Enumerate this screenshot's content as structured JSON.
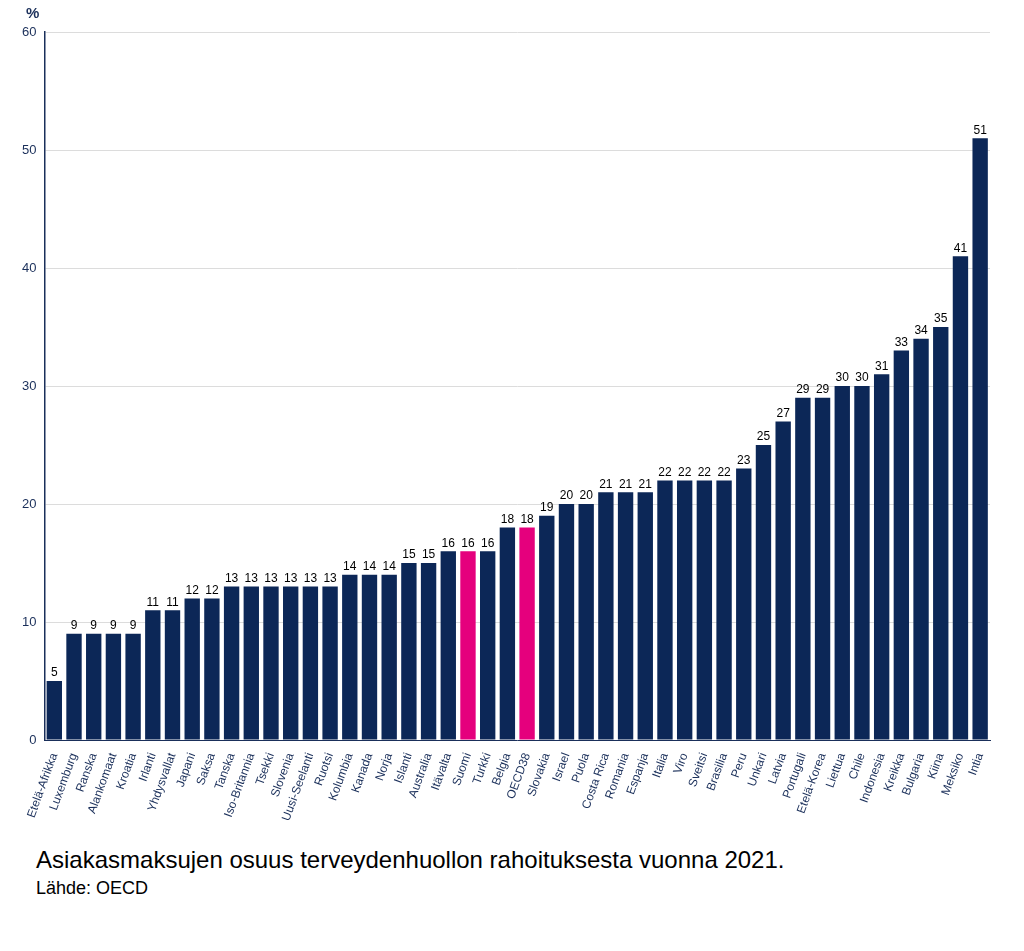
{
  "chart_data": {
    "type": "bar",
    "title": "Asiakasmaksujen osuus terveydenhuollon rahoituksesta vuonna 2021.",
    "subtitle": "Lähde: OECD",
    "ylabel": "%",
    "categories": [
      "Etelä-Afrikka",
      "Luxemburg",
      "Ranska",
      "Alankomaat",
      "Kroatia",
      "Irlanti",
      "Yhdysvallat",
      "Japani",
      "Saksa",
      "Tanska",
      "Iso-Britannia",
      "Tsekki",
      "Slovenia",
      "Uusi-Seelanti",
      "Ruotsi",
      "Kolumbia",
      "Kanada",
      "Norja",
      "Islanti",
      "Australia",
      "Itävalta",
      "Suomi",
      "Turkki",
      "Belgia",
      "OECD38",
      "Slovakia",
      "Israel",
      "Puola",
      "Costa Rica",
      "Romania",
      "Espanja",
      "Italia",
      "Viro",
      "Sveitsi",
      "Brasilia",
      "Peru",
      "Unkari",
      "Latvia",
      "Portugali",
      "Etelä-Korea",
      "Liettua",
      "Chile",
      "Indonesia",
      "Kreikka",
      "Bulgaria",
      "Kiina",
      "Meksiko",
      "Intia"
    ],
    "values": [
      5,
      9,
      9,
      9,
      9,
      11,
      11,
      12,
      12,
      13,
      13,
      13,
      13,
      13,
      13,
      14,
      14,
      14,
      15,
      15,
      16,
      16,
      16,
      18,
      18,
      19,
      20,
      20,
      21,
      21,
      21,
      22,
      22,
      22,
      22,
      23,
      25,
      27,
      29,
      29,
      30,
      30,
      31,
      33,
      34,
      35,
      41,
      51
    ],
    "colors": [
      "#0c2757",
      "#0c2757",
      "#0c2757",
      "#0c2757",
      "#0c2757",
      "#0c2757",
      "#0c2757",
      "#0c2757",
      "#0c2757",
      "#0c2757",
      "#0c2757",
      "#0c2757",
      "#0c2757",
      "#0c2757",
      "#0c2757",
      "#0c2757",
      "#0c2757",
      "#0c2757",
      "#0c2757",
      "#0c2757",
      "#0c2757",
      "#e5007d",
      "#0c2757",
      "#0c2757",
      "#e5007d",
      "#0c2757",
      "#0c2757",
      "#0c2757",
      "#0c2757",
      "#0c2757",
      "#0c2757",
      "#0c2757",
      "#0c2757",
      "#0c2757",
      "#0c2757",
      "#0c2757",
      "#0c2757",
      "#0c2757",
      "#0c2757",
      "#0c2757",
      "#0c2757",
      "#0c2757",
      "#0c2757",
      "#0c2757",
      "#0c2757",
      "#0c2757",
      "#0c2757",
      "#0c2757"
    ],
    "ylim": [
      0,
      60
    ],
    "yticks": [
      0,
      10,
      20,
      30,
      40,
      50,
      60
    ],
    "grid": true,
    "data_labels": true
  }
}
